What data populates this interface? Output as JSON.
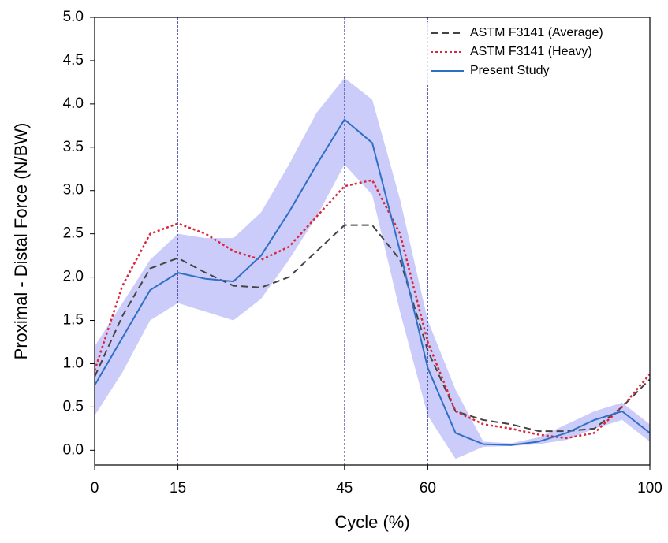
{
  "chart_data": {
    "type": "line",
    "xlabel": "Cycle (%)",
    "ylabel": "Proximal - Distal Force (N/BW)",
    "x": [
      0,
      5,
      10,
      15,
      20,
      25,
      30,
      35,
      40,
      45,
      50,
      55,
      60,
      65,
      70,
      75,
      80,
      85,
      90,
      95,
      100
    ],
    "series": [
      {
        "name": "ASTM F3141 (Average)",
        "color": "#444444",
        "style": "dashed",
        "values": [
          0.85,
          1.55,
          2.1,
          2.22,
          2.05,
          1.9,
          1.88,
          2.0,
          2.3,
          2.6,
          2.6,
          2.2,
          1.15,
          0.45,
          0.35,
          0.3,
          0.22,
          0.22,
          0.25,
          0.5,
          0.82
        ]
      },
      {
        "name": "ASTM F3141 (Heavy)",
        "color": "#d9283c",
        "style": "dotted",
        "values": [
          0.92,
          1.9,
          2.5,
          2.62,
          2.5,
          2.3,
          2.2,
          2.35,
          2.7,
          3.05,
          3.12,
          2.5,
          1.25,
          0.45,
          0.3,
          0.25,
          0.18,
          0.14,
          0.2,
          0.5,
          0.88
        ]
      },
      {
        "name": "Present Study",
        "color": "#2f6fc4",
        "style": "solid",
        "values": [
          0.75,
          1.3,
          1.85,
          2.05,
          1.98,
          1.95,
          2.25,
          2.75,
          3.3,
          3.82,
          3.55,
          2.3,
          0.95,
          0.2,
          0.07,
          0.06,
          0.1,
          0.2,
          0.35,
          0.45,
          0.2
        ],
        "upper": [
          1.2,
          1.7,
          2.2,
          2.5,
          2.45,
          2.45,
          2.75,
          3.3,
          3.9,
          4.3,
          4.05,
          2.9,
          1.5,
          0.7,
          0.1,
          0.08,
          0.15,
          0.3,
          0.45,
          0.55,
          0.3
        ],
        "lower": [
          0.4,
          0.9,
          1.5,
          1.7,
          1.6,
          1.5,
          1.75,
          2.2,
          2.7,
          3.3,
          2.95,
          1.6,
          0.4,
          -0.1,
          0.04,
          0.05,
          0.07,
          0.12,
          0.25,
          0.35,
          0.1
        ],
        "band_color": "#8f8ff5"
      }
    ],
    "xlim": [
      0,
      100
    ],
    "xticks": [
      0,
      15,
      45,
      60,
      100
    ],
    "ylim": [
      -0.17,
      5.0
    ],
    "yticks": [
      {
        "value": 0,
        "label": "0.0"
      },
      0.5,
      {
        "value": 1,
        "label": "1.0"
      },
      1.5,
      {
        "value": 2,
        "label": "2.0"
      },
      2.5,
      {
        "value": 3,
        "label": "3.0"
      },
      3.5,
      {
        "value": 4,
        "label": "4.0"
      },
      4.5,
      {
        "value": 5,
        "label": "5.0"
      }
    ],
    "vlines": [
      15,
      45,
      60
    ],
    "vline_color": "#3a3aa0",
    "legend": "upper right"
  }
}
